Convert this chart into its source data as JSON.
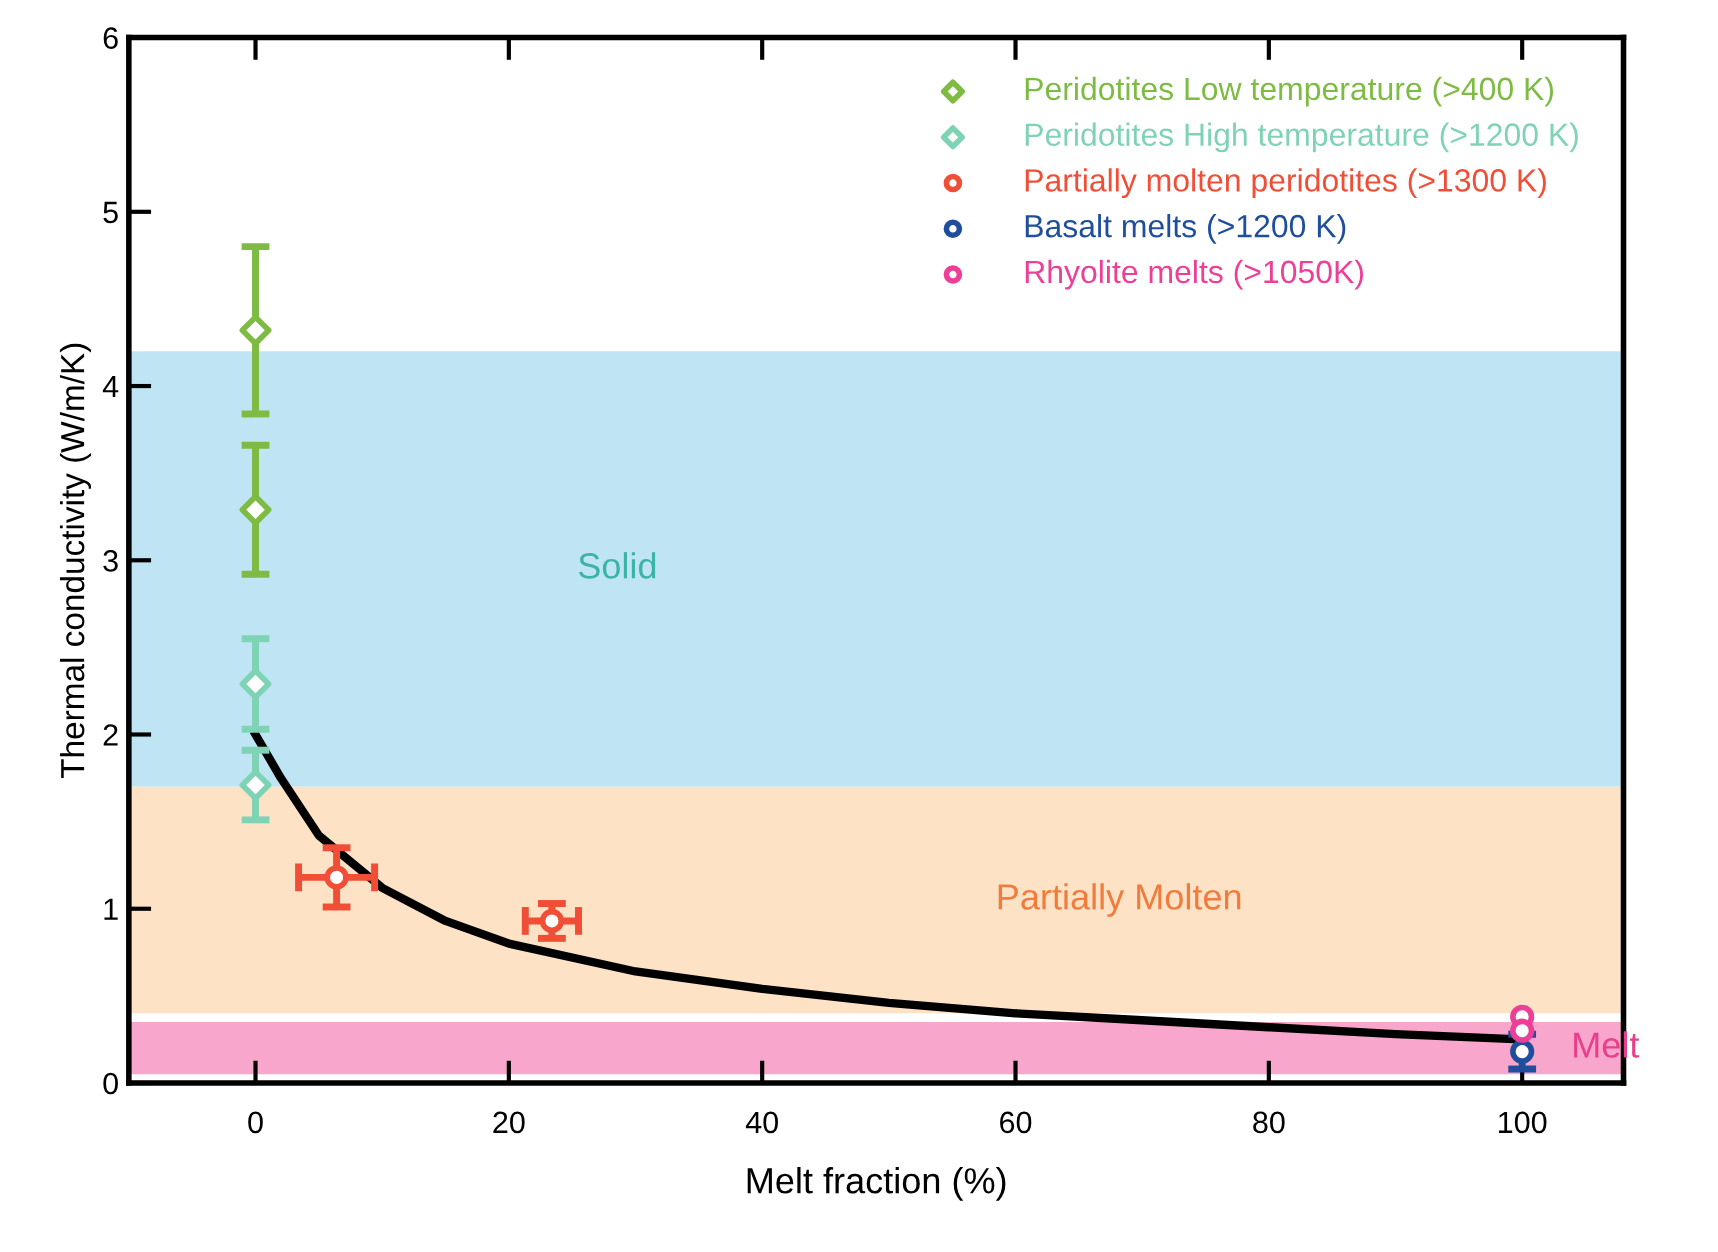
{
  "chart_data": {
    "type": "scatter",
    "xlabel": "Melt fraction (%)",
    "ylabel": "Thermal conductivity (W/m/K)",
    "xlim": [
      -10,
      108
    ],
    "ylim": [
      0,
      6
    ],
    "xticks": [
      0,
      20,
      40,
      60,
      80,
      100
    ],
    "yticks": [
      0,
      1,
      2,
      3,
      4,
      5,
      6
    ],
    "grid": false,
    "legend": "top right",
    "bands": [
      {
        "axis": "y",
        "from": 1.7,
        "to": 4.2,
        "label": "Solid",
        "color": "#bfe4f4"
      },
      {
        "axis": "y",
        "from": 0.4,
        "to": 1.7,
        "label": "Partially Molten",
        "color": "#fde2c6"
      },
      {
        "axis": "y",
        "from": 0.05,
        "to": 0.35,
        "label": "Melt",
        "color": "#f8a6cb"
      }
    ],
    "series": [
      {
        "name": "Peridotites Low temperature (>400 K)",
        "color": "#7dbb42",
        "marker": "diamond",
        "x": [
          0,
          0
        ],
        "values": [
          4.32,
          3.29
        ],
        "errors": [
          0.48,
          0.37
        ]
      },
      {
        "name": "Peridotites High temperature (>1200 K)",
        "color": "#7fd3b5",
        "marker": "diamond",
        "x": [
          0,
          0
        ],
        "values": [
          2.29,
          1.71
        ],
        "errors": [
          0.26,
          0.2
        ]
      },
      {
        "name": "Partially molten peridotites (>1300 K)",
        "color": "#f04e37",
        "marker": "circle",
        "x": [
          6.4,
          23.4
        ],
        "values": [
          1.18,
          0.93
        ],
        "errors": [
          0.17,
          0.1
        ],
        "xerrors": [
          3,
          2.1
        ]
      },
      {
        "name": "Basalt melts (>1200 K)",
        "color": "#1f4e9c",
        "marker": "circle",
        "x": [
          100
        ],
        "values": [
          0.18
        ],
        "errors": [
          0.1
        ]
      },
      {
        "name": "Rhyolite melts (>1050K)",
        "color": "#ee3f98",
        "marker": "circle",
        "x": [
          100,
          100
        ],
        "values": [
          0.38,
          0.3
        ]
      },
      {
        "type": "line",
        "color": "#000000",
        "marker": "none",
        "x": [
          0,
          2,
          5,
          10,
          15,
          20,
          30,
          40,
          50,
          60,
          70,
          80,
          90,
          100
        ],
        "values": [
          2.0,
          1.75,
          1.42,
          1.12,
          0.93,
          0.8,
          0.64,
          0.54,
          0.46,
          0.4,
          0.36,
          0.32,
          0.28,
          0.25
        ]
      }
    ]
  }
}
